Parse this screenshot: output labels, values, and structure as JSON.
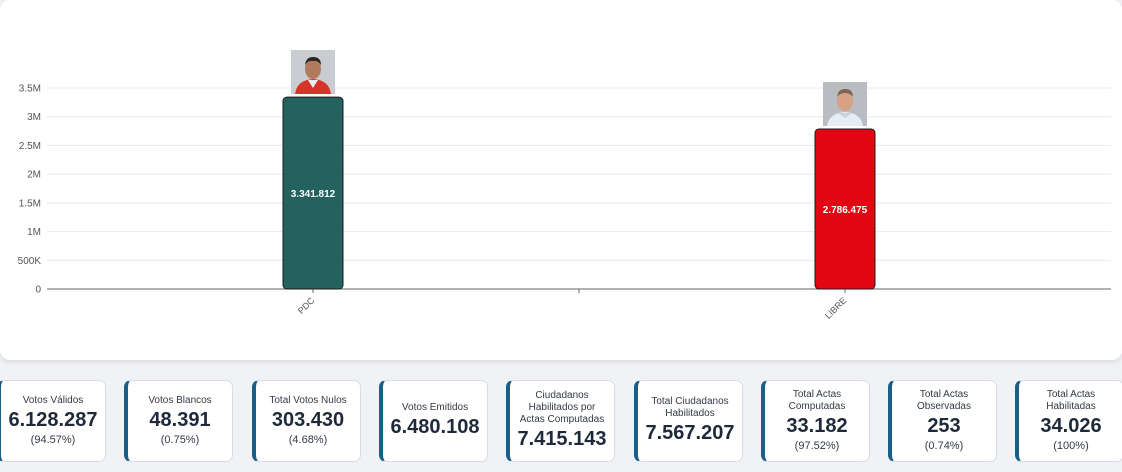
{
  "chart_data": {
    "type": "bar",
    "categories": [
      "PDC",
      "LIBRE"
    ],
    "values": [
      3341812,
      2786475
    ],
    "value_labels": [
      "3.341.812",
      "2.786.475"
    ],
    "colors": [
      "#25615f",
      "#e20613"
    ],
    "ylim": [
      0,
      3500000
    ],
    "ytick_values": [
      0,
      500000,
      1000000,
      1500000,
      2000000,
      2500000,
      3000000,
      3500000
    ],
    "ytick_labels": [
      "0",
      "500K",
      "1M",
      "1.5M",
      "2M",
      "2.5M",
      "3M",
      "3.5M"
    ],
    "grid": true,
    "candidate_photos": [
      "candidate-photo-pdc",
      "candidate-photo-libre"
    ]
  },
  "stats": [
    {
      "label": "Votos Válidos",
      "value": "6.128.287",
      "pct": "(94.57%)"
    },
    {
      "label": "Votos Blancos",
      "value": "48.391",
      "pct": "(0.75%)"
    },
    {
      "label": "Total Votos Nulos",
      "value": "303.430",
      "pct": "(4.68%)"
    },
    {
      "label": "Votos Emitidos",
      "value": "6.480.108",
      "pct": ""
    },
    {
      "label": "Ciudadanos Habilitados por Actas Computadas",
      "value": "7.415.143",
      "pct": ""
    },
    {
      "label": "Total Ciudadanos Habilitados",
      "value": "7.567.207",
      "pct": ""
    },
    {
      "label": "Total Actas Computadas",
      "value": "33.182",
      "pct": "(97.52%)"
    },
    {
      "label": "Total Actas Observadas",
      "value": "253",
      "pct": "(0.74%)"
    },
    {
      "label": "Total Actas Habilitadas",
      "value": "34.026",
      "pct": "(100%)"
    }
  ]
}
